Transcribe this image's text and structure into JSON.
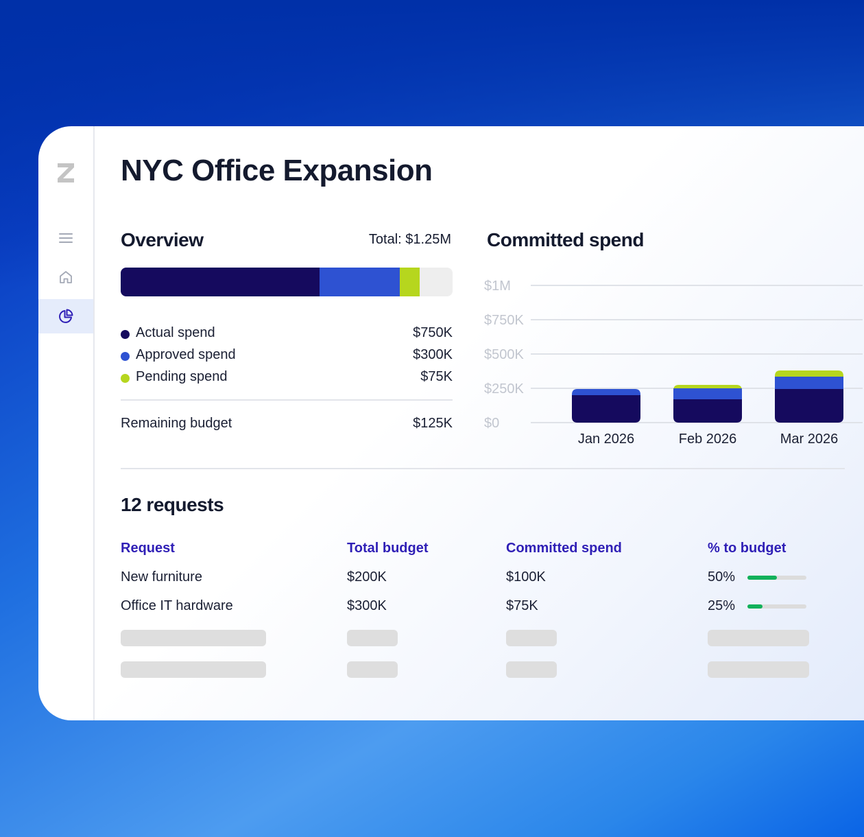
{
  "page": {
    "title": "NYC Office Expansion"
  },
  "sidebar": {
    "items": [
      {
        "icon": "menu-icon"
      },
      {
        "icon": "home-icon"
      },
      {
        "icon": "pie-chart-icon",
        "active": true
      }
    ]
  },
  "overview": {
    "heading": "Overview",
    "total": "Total: $1.25M",
    "segments": [
      {
        "name": "Actual spend",
        "value": 750,
        "color": "#150a5e"
      },
      {
        "name": "Approved spend",
        "value": 300,
        "color": "#2e52d2"
      },
      {
        "name": "Pending spend",
        "value": 75,
        "color": "#b6d61e"
      }
    ],
    "remaining_value": 125,
    "remaining_color": "#eeeeee",
    "legend": [
      {
        "label": "Actual spend",
        "value": "$750K"
      },
      {
        "label": "Approved spend",
        "value": "$300K"
      },
      {
        "label": "Pending spend",
        "value": "$75K"
      }
    ],
    "remaining": {
      "label": "Remaining budget",
      "value": "$125K"
    }
  },
  "chart_data": {
    "type": "bar",
    "stacked": true,
    "title": "Committed spend",
    "categories": [
      "Jan 2026",
      "Feb 2026",
      "Mar 2026"
    ],
    "series": [
      {
        "values": [
          200,
          170,
          245
        ],
        "color": "#150a5e"
      },
      {
        "values": [
          45,
          80,
          90
        ],
        "color": "#2e52d2"
      },
      {
        "values": [
          0,
          25,
          45
        ],
        "color": "#b6d61e"
      }
    ],
    "yticks": [
      0,
      250,
      500,
      750,
      1000
    ],
    "ytick_labels": [
      "$0",
      "$250K",
      "$500K",
      "$750K",
      "$1M"
    ],
    "ylim": [
      0,
      1000
    ],
    "grid": true
  },
  "requests": {
    "heading": "12 requests",
    "columns": [
      "Request",
      "Total budget",
      "Committed spend",
      "% to budget"
    ],
    "rows": [
      {
        "request": "New furniture",
        "total_budget": "$200K",
        "committed": "$100K",
        "percent": "50%",
        "percent_value": 0.5
      },
      {
        "request": "Office IT hardware",
        "total_budget": "$300K",
        "committed": "$75K",
        "percent": "25%",
        "percent_value": 0.25
      }
    ]
  }
}
